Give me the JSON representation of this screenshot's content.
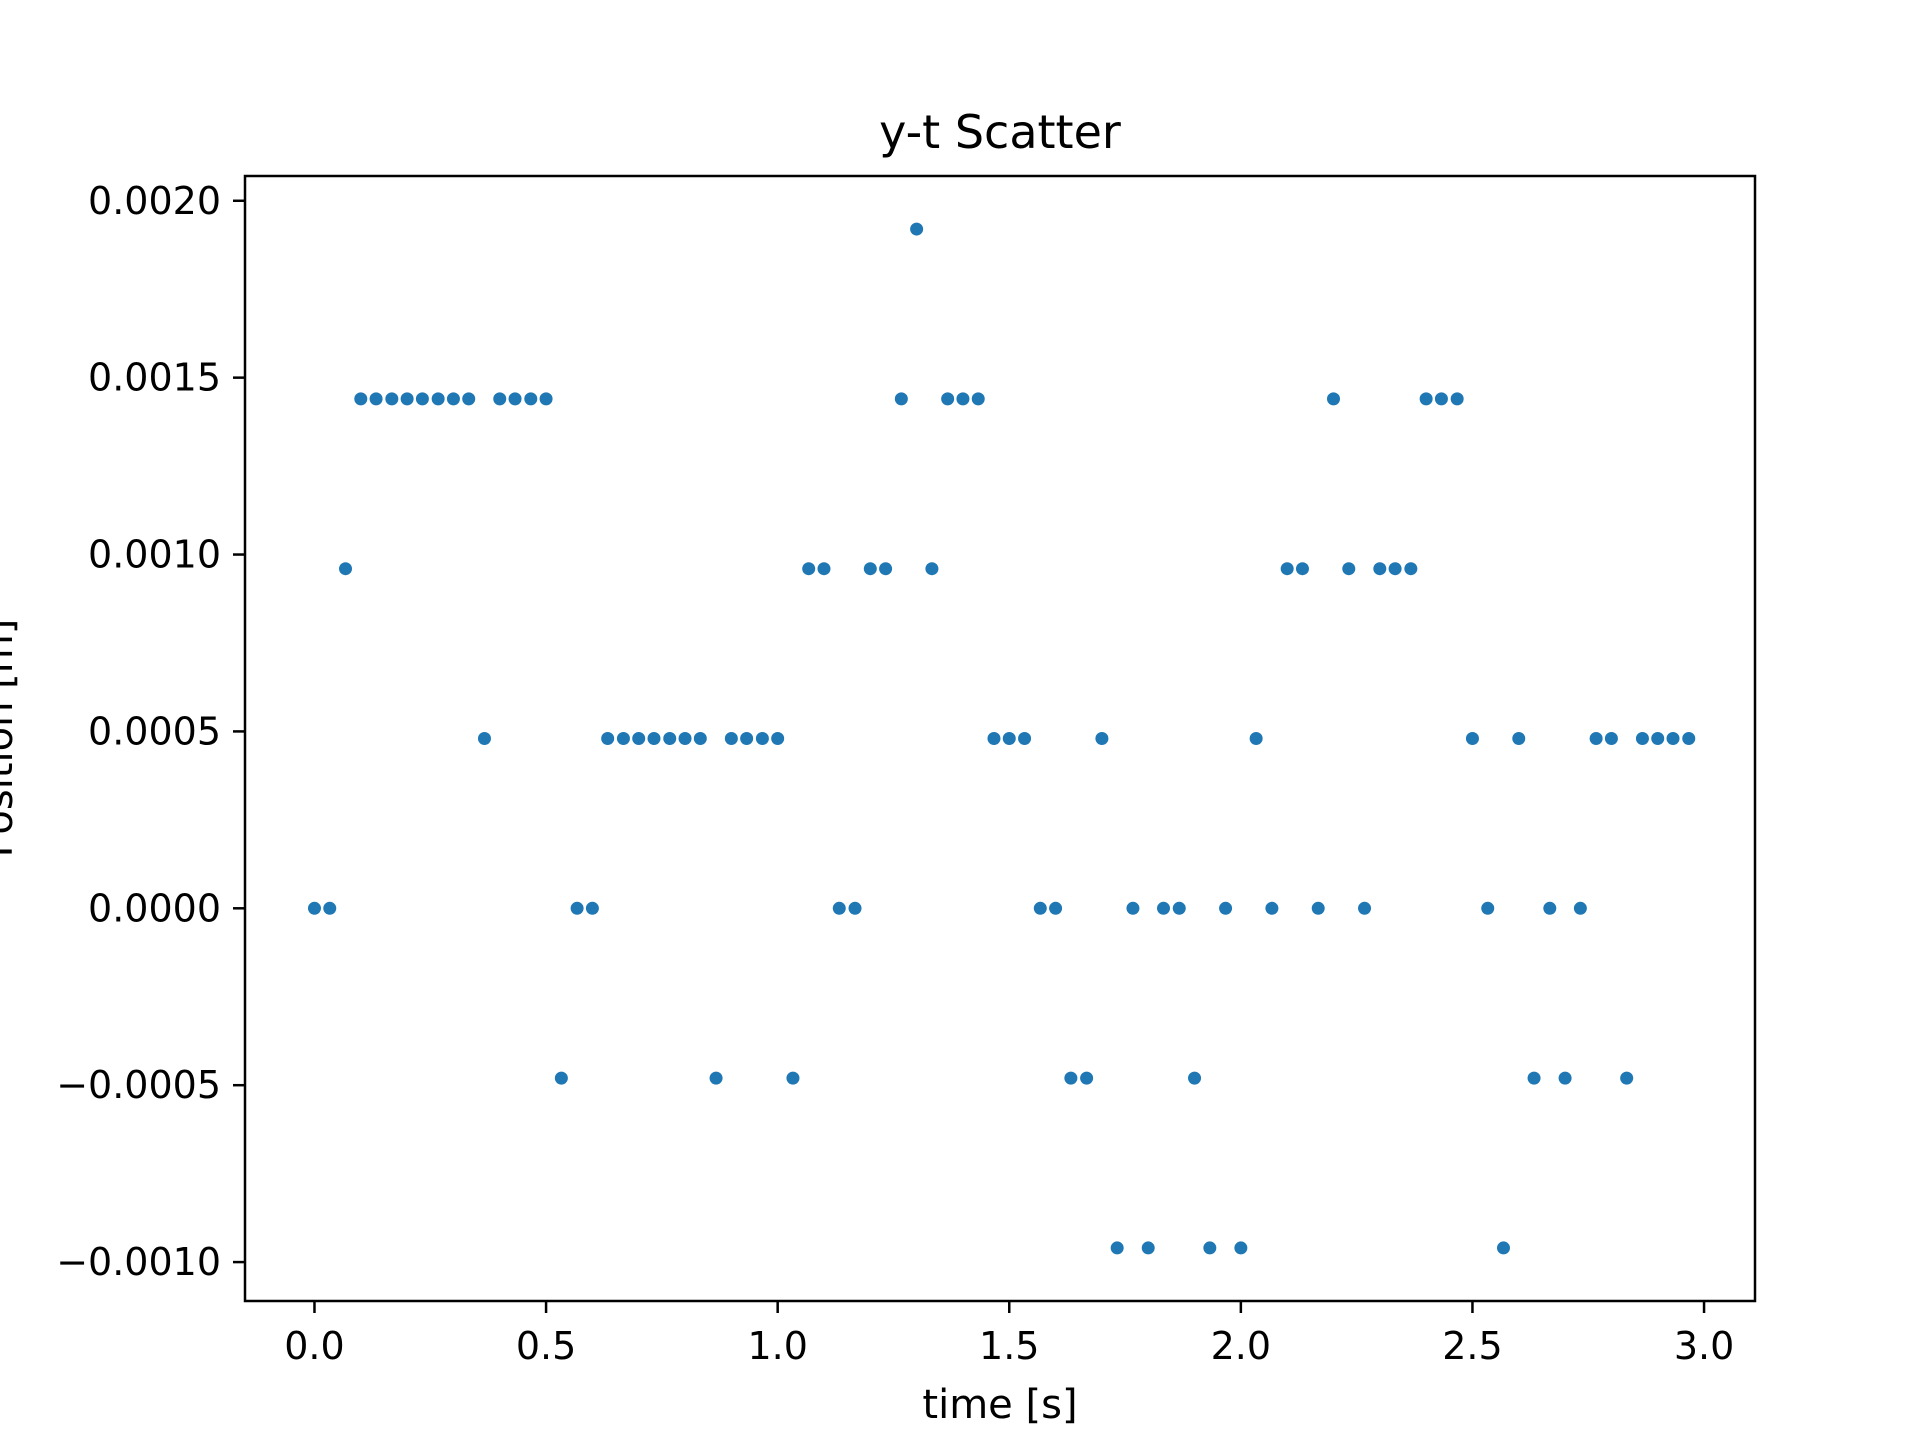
{
  "chart_data": {
    "type": "scatter",
    "title": "y-t Scatter",
    "xlabel": "time [s]",
    "ylabel": "Position [m]",
    "xlim": [
      -0.15,
      3.11
    ],
    "ylim": [
      -0.00111,
      0.00207
    ],
    "xticks": [
      0.0,
      0.5,
      1.0,
      1.5,
      2.0,
      2.5,
      3.0
    ],
    "xtick_labels": [
      "0.0",
      "0.5",
      "1.0",
      "1.5",
      "2.0",
      "2.5",
      "3.0"
    ],
    "yticks": [
      -0.001,
      -0.0005,
      0.0,
      0.0005,
      0.001,
      0.0015,
      0.002
    ],
    "ytick_labels": [
      "−0.0010",
      "−0.0005",
      "0.0000",
      "0.0005",
      "0.0010",
      "0.0015",
      "0.0020"
    ],
    "grid": false,
    "marker_color": "#1f77b4",
    "series": [
      {
        "x": [
          0.0,
          0.033,
          0.067,
          0.1,
          0.133,
          0.167,
          0.2,
          0.233,
          0.267,
          0.3,
          0.333,
          0.367,
          0.4,
          0.433,
          0.467,
          0.5,
          0.533,
          0.567,
          0.6,
          0.633,
          0.667,
          0.7,
          0.733,
          0.767,
          0.8,
          0.833,
          0.867,
          0.9,
          0.933,
          0.967,
          1.0,
          1.033,
          1.067,
          1.1,
          1.133,
          1.167,
          1.2,
          1.233,
          1.267,
          1.3,
          1.333,
          1.367,
          1.4,
          1.433,
          1.467,
          1.5,
          1.533,
          1.567,
          1.6,
          1.633,
          1.667,
          1.7,
          1.733,
          1.767,
          1.8,
          1.833,
          1.867,
          1.9,
          1.933,
          1.967,
          2.0,
          2.033,
          2.067,
          2.1,
          2.133,
          2.167,
          2.2,
          2.233,
          2.267,
          2.3,
          2.333,
          2.367,
          2.4,
          2.433,
          2.467,
          2.5,
          2.533,
          2.567,
          2.6,
          2.633,
          2.667,
          2.7,
          2.733,
          2.767,
          2.8,
          2.833,
          2.867,
          2.9,
          2.933,
          2.967
        ],
        "y": [
          0.0,
          0.0,
          0.00096,
          0.00144,
          0.00144,
          0.00144,
          0.00144,
          0.00144,
          0.00144,
          0.00144,
          0.00144,
          0.00048,
          0.00144,
          0.00144,
          0.00144,
          0.00144,
          -0.00048,
          0.0,
          0.0,
          0.00048,
          0.00048,
          0.00048,
          0.00048,
          0.00048,
          0.00048,
          0.00048,
          -0.00048,
          0.00048,
          0.00048,
          0.00048,
          0.00048,
          -0.00048,
          0.00096,
          0.00096,
          0.0,
          0.0,
          0.00096,
          0.00096,
          0.00144,
          0.00192,
          0.00096,
          0.00144,
          0.00144,
          0.00144,
          0.00048,
          0.00048,
          0.00048,
          0.0,
          0.0,
          -0.00048,
          -0.00048,
          0.00048,
          -0.00096,
          0.0,
          -0.00096,
          0.0,
          0.0,
          -0.00048,
          -0.00096,
          0.0,
          -0.00096,
          0.00048,
          0.0,
          0.00096,
          0.00096,
          0.0,
          0.00144,
          0.00096,
          0.0,
          0.00096,
          0.00096,
          0.00096,
          0.00144,
          0.00144,
          0.00144,
          0.00048,
          0.0,
          -0.00096,
          0.00048,
          -0.00048,
          0.0,
          -0.00048,
          0.0,
          0.00048,
          0.00048,
          -0.00048,
          0.00048,
          0.00048,
          0.00048,
          0.00048
        ]
      }
    ]
  }
}
